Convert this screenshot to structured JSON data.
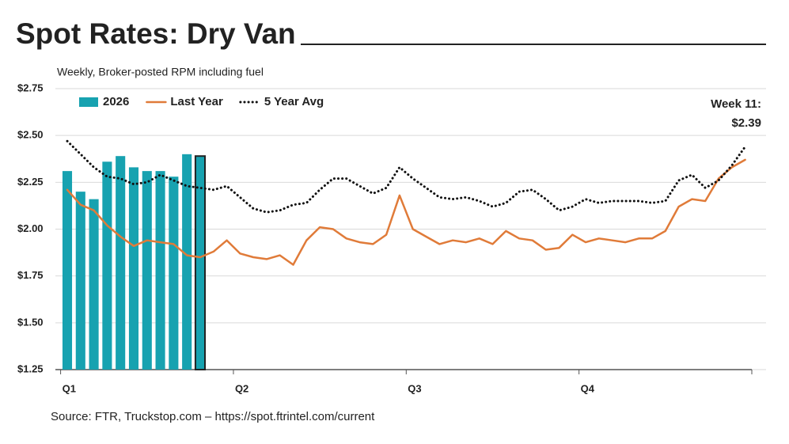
{
  "chart_data": {
    "type": "bar_line",
    "title": "Spot Rates: Dry Van",
    "subtitle": "Weekly, Broker-posted RPM including fuel",
    "source": "Source: FTR, Truckstop.com – https://spot.ftrintel.com/current",
    "annotation": [
      "Week 11:",
      "$2.39"
    ],
    "x": [
      1,
      2,
      3,
      4,
      5,
      6,
      7,
      8,
      9,
      10,
      11,
      12,
      13,
      14,
      15,
      16,
      17,
      18,
      19,
      20,
      21,
      22,
      23,
      24,
      25,
      26,
      27,
      28,
      29,
      30,
      31,
      32,
      33,
      34,
      35,
      36,
      37,
      38,
      39,
      40,
      41,
      42,
      43,
      44,
      45,
      46,
      47,
      48,
      49,
      50,
      51,
      52
    ],
    "xlim": [
      0.5,
      52.5
    ],
    "xticks": [
      {
        "value": 0.5,
        "label": "Q1"
      },
      {
        "value": 13.5,
        "label": "Q2"
      },
      {
        "value": 26.5,
        "label": "Q3"
      },
      {
        "value": 39.5,
        "label": "Q4"
      }
    ],
    "ylim": [
      1.25,
      2.75
    ],
    "yticks": [
      {
        "value": 1.25,
        "label": "$1.25"
      },
      {
        "value": 1.5,
        "label": "$1.50"
      },
      {
        "value": 1.75,
        "label": "$1.75"
      },
      {
        "value": 2.0,
        "label": "$2.00"
      },
      {
        "value": 2.25,
        "label": "$2.25"
      },
      {
        "value": 2.5,
        "label": "$2.50"
      },
      {
        "value": 2.75,
        "label": "$2.75"
      }
    ],
    "grid": true,
    "legend": "top-left",
    "highlight_outline": "#222222",
    "series": [
      {
        "name": "2026",
        "type": "bar",
        "color": "#17a2b0",
        "values": [
          2.31,
          2.2,
          2.16,
          2.36,
          2.39,
          2.33,
          2.31,
          2.31,
          2.28,
          2.4,
          2.39,
          null,
          null,
          null,
          null,
          null,
          null,
          null,
          null,
          null,
          null,
          null,
          null,
          null,
          null,
          null,
          null,
          null,
          null,
          null,
          null,
          null,
          null,
          null,
          null,
          null,
          null,
          null,
          null,
          null,
          null,
          null,
          null,
          null,
          null,
          null,
          null,
          null,
          null,
          null,
          null,
          null
        ]
      },
      {
        "name": "Last Year",
        "type": "line",
        "color": "#e07b39",
        "values": [
          2.21,
          2.13,
          2.1,
          2.02,
          1.96,
          1.91,
          1.94,
          1.93,
          1.92,
          1.86,
          1.85,
          1.88,
          1.94,
          1.87,
          1.85,
          1.84,
          1.86,
          1.81,
          1.94,
          2.01,
          2.0,
          1.95,
          1.93,
          1.92,
          1.97,
          2.18,
          2.0,
          1.96,
          1.92,
          1.94,
          1.93,
          1.95,
          1.92,
          1.99,
          1.95,
          1.94,
          1.89,
          1.9,
          1.97,
          1.93,
          1.95,
          1.94,
          1.93,
          1.95,
          1.95,
          1.99,
          2.12,
          2.16,
          2.15,
          2.27,
          2.33,
          2.37
        ]
      },
      {
        "name": "5 Year Avg",
        "type": "dotted",
        "color": "#111111",
        "values": [
          2.47,
          2.4,
          2.33,
          2.28,
          2.27,
          2.24,
          2.25,
          2.29,
          2.26,
          2.23,
          2.22,
          2.21,
          2.23,
          2.17,
          2.11,
          2.09,
          2.1,
          2.13,
          2.14,
          2.21,
          2.27,
          2.27,
          2.23,
          2.19,
          2.22,
          2.33,
          2.27,
          2.22,
          2.17,
          2.16,
          2.17,
          2.15,
          2.12,
          2.14,
          2.2,
          2.21,
          2.16,
          2.1,
          2.12,
          2.16,
          2.14,
          2.15,
          2.15,
          2.15,
          2.14,
          2.15,
          2.26,
          2.29,
          2.22,
          2.26,
          2.34,
          2.44
        ]
      }
    ]
  }
}
